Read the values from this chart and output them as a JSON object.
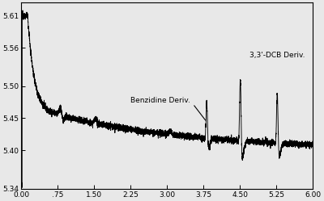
{
  "xlim": [
    0.0,
    6.0
  ],
  "ylim": [
    5.34,
    5.63
  ],
  "xticks": [
    0.0,
    0.75,
    1.5,
    2.25,
    3.0,
    3.75,
    4.5,
    5.25,
    6.0
  ],
  "yticks": [
    5.34,
    5.4,
    5.45,
    5.5,
    5.56,
    5.61
  ],
  "xtick_labels": [
    "0.00",
    ".75",
    "1.50",
    "2.25",
    "3.00",
    "3.75",
    "4.50",
    "5.25",
    "6.00"
  ],
  "ytick_labels": [
    "5.34",
    "5.40",
    "5.45",
    "5.50",
    "5.56",
    "5.61"
  ],
  "line_color": "#000000",
  "background_color": "#e8e8e8",
  "annotation_benzidine": "Benzidine Deriv.",
  "annotation_dcb": "3,3'-DCB Deriv."
}
